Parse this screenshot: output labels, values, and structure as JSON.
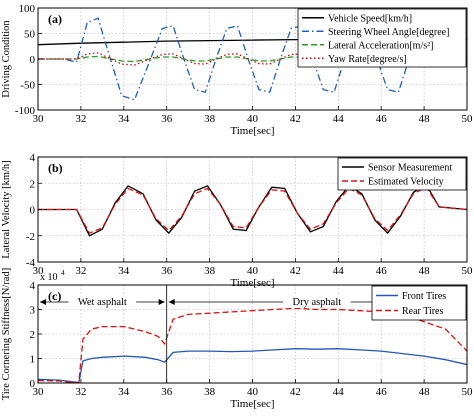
{
  "chart_data": [
    {
      "type": "line",
      "panel_label": "(a)",
      "xlabel": "Time[sec]",
      "ylabel": "Driving Condition",
      "xlim": [
        30,
        50
      ],
      "ylim": [
        -100,
        100
      ],
      "xticks": [
        30,
        32,
        34,
        36,
        38,
        40,
        42,
        44,
        46,
        48,
        50
      ],
      "yticks": [
        -100,
        -50,
        0,
        50,
        100
      ],
      "grid": true,
      "legend": "top-right",
      "series": [
        {
          "name": "Vehicle Speed[km/h]",
          "color": "#000000",
          "dash": "solid",
          "x": [
            30,
            32,
            34,
            36,
            38,
            40,
            42,
            44,
            46,
            48,
            50
          ],
          "y": [
            28,
            31,
            33,
            35,
            36,
            37,
            38,
            39,
            39.5,
            40,
            40
          ]
        },
        {
          "name": "Steering Wheel Angle[degree]",
          "color": "#1f5fbf",
          "dash": "dashdot",
          "x": [
            30,
            31.2,
            31.8,
            32.3,
            32.8,
            33.3,
            33.9,
            34.5,
            35.2,
            35.8,
            36.3,
            36.8,
            37.3,
            37.8,
            38.3,
            38.8,
            39.3,
            39.8,
            40.3,
            40.8,
            41.3,
            41.8,
            42.3,
            42.8,
            43.3,
            43.8,
            44.3,
            44.8,
            45.3,
            45.8,
            46.3,
            46.8,
            47.3,
            47.8,
            48.3,
            48.8,
            50
          ],
          "y": [
            0,
            0,
            -6,
            72,
            80,
            10,
            -72,
            -80,
            -5,
            60,
            65,
            0,
            -60,
            -65,
            0,
            60,
            65,
            0,
            -60,
            -65,
            0,
            60,
            65,
            0,
            -60,
            -65,
            0,
            60,
            65,
            0,
            -60,
            -65,
            0,
            60,
            65,
            0,
            0
          ]
        },
        {
          "name": "Lateral Acceleration[m/s²]",
          "color": "#2e9a2e",
          "dash": "dash",
          "x": [
            30,
            31.8,
            32.3,
            32.8,
            33.3,
            33.9,
            34.5,
            35.2,
            35.8,
            36.3,
            36.8,
            37.3,
            37.8,
            38.3,
            38.8,
            39.3,
            39.8,
            40.3,
            40.8,
            41.3,
            41.8,
            42.3,
            42.8,
            43.3,
            43.8,
            44.3,
            44.8,
            45.3,
            45.8,
            46.3,
            46.8,
            47.3,
            47.8,
            48.3,
            48.8,
            50
          ],
          "y": [
            0,
            0,
            4,
            5,
            1,
            -4,
            -5,
            0,
            4,
            4,
            0,
            -4,
            -4,
            0,
            4,
            4,
            0,
            -4,
            -4,
            0,
            4,
            4,
            0,
            -4,
            -4,
            0,
            4,
            4,
            0,
            -4,
            -4,
            0,
            4,
            4,
            0,
            0
          ]
        },
        {
          "name": "Yaw Rate[degree/s]",
          "color": "#cc0000",
          "dash": "dot",
          "x": [
            30,
            31.8,
            32.3,
            32.8,
            33.3,
            33.9,
            34.5,
            35.2,
            35.8,
            36.3,
            36.8,
            37.3,
            37.8,
            38.3,
            38.8,
            39.3,
            39.8,
            40.3,
            40.8,
            41.3,
            41.8,
            42.3,
            42.8,
            43.3,
            43.8,
            44.3,
            44.8,
            45.3,
            45.8,
            46.3,
            46.8,
            47.3,
            47.8,
            48.3,
            48.8,
            50
          ],
          "y": [
            0,
            0,
            10,
            12,
            2,
            -10,
            -12,
            0,
            9,
            10,
            0,
            -9,
            -10,
            0,
            9,
            10,
            0,
            -9,
            -10,
            0,
            9,
            10,
            0,
            -9,
            -10,
            0,
            9,
            10,
            0,
            -9,
            -10,
            0,
            9,
            10,
            0,
            0
          ]
        }
      ]
    },
    {
      "type": "line",
      "panel_label": "(b)",
      "xlabel": "Time[sec]",
      "ylabel": "Lateral Velocity [km/h]",
      "xlim": [
        30,
        50
      ],
      "ylim": [
        -4,
        4
      ],
      "xticks": [
        30,
        32,
        34,
        36,
        38,
        40,
        42,
        44,
        46,
        48,
        50
      ],
      "yticks": [
        -4,
        -2,
        0,
        2,
        4
      ],
      "grid": true,
      "legend": "top-right",
      "series": [
        {
          "name": "Sensor Measurement",
          "color": "#000000",
          "dash": "solid",
          "x": [
            30,
            31.8,
            32.4,
            33.0,
            33.6,
            34.2,
            34.9,
            35.5,
            36.1,
            36.7,
            37.3,
            37.9,
            38.5,
            39.1,
            39.7,
            40.3,
            40.9,
            41.5,
            42.1,
            42.7,
            43.3,
            43.9,
            44.5,
            45.1,
            45.7,
            46.3,
            46.9,
            47.5,
            48.1,
            48.7,
            50
          ],
          "y": [
            0,
            0,
            -2,
            -1.5,
            0.5,
            1.8,
            1.2,
            -0.8,
            -1.8,
            -0.6,
            1.4,
            1.8,
            0.4,
            -1.5,
            -1.6,
            0.2,
            1.7,
            1.6,
            -0.3,
            -1.7,
            -1.3,
            0.6,
            1.8,
            1.2,
            -0.8,
            -1.8,
            -0.5,
            1.3,
            1.9,
            0.2,
            0
          ]
        },
        {
          "name": "Estimated Velocity",
          "color": "#dd1111",
          "dash": "dash",
          "x": [
            30,
            31.8,
            32.4,
            33.0,
            33.6,
            34.2,
            34.9,
            35.5,
            36.1,
            36.7,
            37.3,
            37.9,
            38.5,
            39.1,
            39.7,
            40.3,
            40.9,
            41.5,
            42.1,
            42.7,
            43.3,
            43.9,
            44.5,
            45.1,
            45.7,
            46.3,
            46.9,
            47.5,
            48.1,
            48.7,
            50
          ],
          "y": [
            0,
            0,
            -1.8,
            -1.4,
            0.4,
            1.6,
            1.1,
            -0.7,
            -1.6,
            -0.5,
            1.2,
            1.6,
            0.4,
            -1.3,
            -1.4,
            0.2,
            1.5,
            1.4,
            -0.3,
            -1.5,
            -1.1,
            0.5,
            1.6,
            1.1,
            -0.7,
            -1.6,
            -0.4,
            1.2,
            1.7,
            0.2,
            0
          ]
        }
      ]
    },
    {
      "type": "line",
      "panel_label": "(c)",
      "xlabel": "Time[sec]",
      "ylabel": "Tire Cornering Stiffness[N/rad]",
      "y_multiplier": "x 10",
      "y_multiplier_exp": "4",
      "xlim": [
        30,
        50
      ],
      "ylim": [
        0,
        4
      ],
      "xticks": [
        30,
        32,
        34,
        36,
        38,
        40,
        42,
        44,
        46,
        48,
        50
      ],
      "yticks": [
        0,
        1,
        2,
        3,
        4
      ],
      "grid": true,
      "legend": "top-right",
      "annotations": [
        {
          "text": "Wet asphalt",
          "x_start": 30,
          "x_end": 36
        },
        {
          "text": "Dry asphalt",
          "x_start": 36,
          "x_end": 50
        }
      ],
      "series": [
        {
          "name": "Front Tires",
          "color": "#2456b8",
          "dash": "solid",
          "x": [
            30,
            31,
            31.6,
            31.9,
            32.1,
            32.5,
            33,
            34,
            35,
            35.6,
            35.9,
            36.3,
            37,
            38,
            39,
            40,
            41,
            42,
            43,
            44,
            45,
            46,
            47,
            48,
            49,
            50
          ],
          "y": [
            0.15,
            0.12,
            0.05,
            0.02,
            0.9,
            1.0,
            1.05,
            1.1,
            1.05,
            0.95,
            0.85,
            1.25,
            1.3,
            1.3,
            1.28,
            1.3,
            1.35,
            1.4,
            1.38,
            1.4,
            1.35,
            1.3,
            1.2,
            1.1,
            0.95,
            0.75
          ]
        },
        {
          "name": "Rear Tires",
          "color": "#dd1111",
          "dash": "dash",
          "x": [
            30,
            31,
            31.6,
            31.9,
            32.1,
            32.5,
            33,
            34,
            35,
            35.6,
            35.9,
            36.3,
            37,
            38,
            39,
            40,
            41,
            42,
            43,
            44,
            45,
            46,
            47,
            48,
            49,
            50
          ],
          "y": [
            0.1,
            0.08,
            0.03,
            0.02,
            1.8,
            2.2,
            2.3,
            2.3,
            2.1,
            1.9,
            1.6,
            2.6,
            2.8,
            2.85,
            2.9,
            2.95,
            3.0,
            3.05,
            3.0,
            3.0,
            2.95,
            2.9,
            2.8,
            2.5,
            2.2,
            1.3
          ]
        }
      ]
    }
  ]
}
